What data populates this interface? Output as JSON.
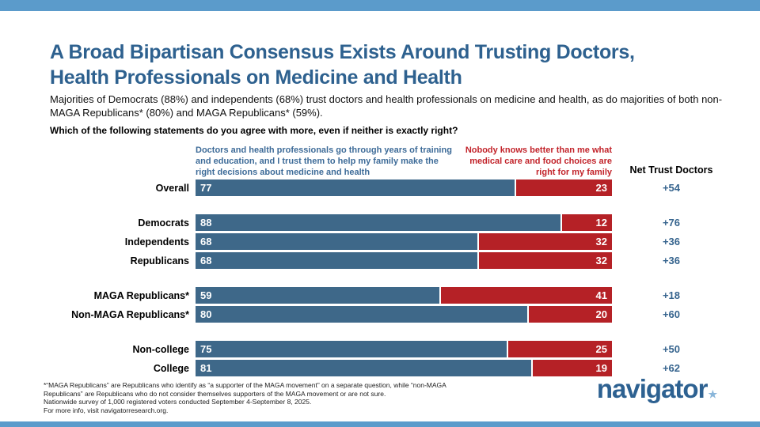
{
  "colors": {
    "band_blue": "#5b9bcb",
    "title_blue": "#2e618f",
    "bar_blue": "#3e6889",
    "bar_red": "#b52126",
    "header_left_blue": "#3d6b98",
    "header_right_red": "#c2232a",
    "net_blue": "#36648e",
    "logo_blue": "#2d6191",
    "logo_star_blue": "#8ab6da"
  },
  "header": {
    "title_line1": "A Broad Bipartisan Consensus Exists Around Trusting Doctors,",
    "title_line2": "Health Professionals on Medicine and Health",
    "subtitle": "Majorities of Democrats (88%) and independents (68%) trust doctors and health professionals on medicine and health, as do majorities of both non-MAGA Republicans* (80%) and MAGA Republicans* (59%).",
    "question": "Which of the following statements do you agree with more, even if neither is exactly right?"
  },
  "chart_data": {
    "type": "bar",
    "orientation": "horizontal-stacked",
    "xlim": [
      0,
      100
    ],
    "column_headers": {
      "left": "Doctors and health professionals go through years of training and education, and I trust them to help my family make the right decisions about medicine and health",
      "right": "Nobody knows better than me what medical care and food choices are right for my family",
      "net": "Net Trust Doctors"
    },
    "categories": [
      "Overall",
      "Democrats",
      "Independents",
      "Republicans",
      "MAGA Republicans*",
      "Non-MAGA Republicans*",
      "Non-college",
      "College"
    ],
    "series": [
      {
        "name": "Trust doctors and health professionals",
        "color": "#3e6889",
        "values": [
          77,
          88,
          68,
          68,
          59,
          80,
          75,
          81
        ]
      },
      {
        "name": "Nobody knows better than me",
        "color": "#b52126",
        "values": [
          23,
          12,
          32,
          32,
          41,
          20,
          25,
          19
        ]
      }
    ],
    "net_values": [
      "+54",
      "+76",
      "+36",
      "+36",
      "+18",
      "+60",
      "+50",
      "+62"
    ],
    "row_groups": [
      [
        0
      ],
      [
        1,
        2,
        3
      ],
      [
        4,
        5
      ],
      [
        6,
        7
      ]
    ]
  },
  "footnote": {
    "line1": "*“MAGA Republicans” are Republicans who identify as “a supporter of the MAGA movement” on a separate question, while “non-MAGA",
    "line2": "Republicans” are Republicans who do not consider themselves supporters of the MAGA movement or are not sure.",
    "line3": "Nationwide survey of 1,000 registered voters conducted September 4-September 8, 2025.",
    "line4": "For more info, visit navigatorresearch.org."
  },
  "logo": {
    "text": "navigator",
    "star": "★"
  }
}
